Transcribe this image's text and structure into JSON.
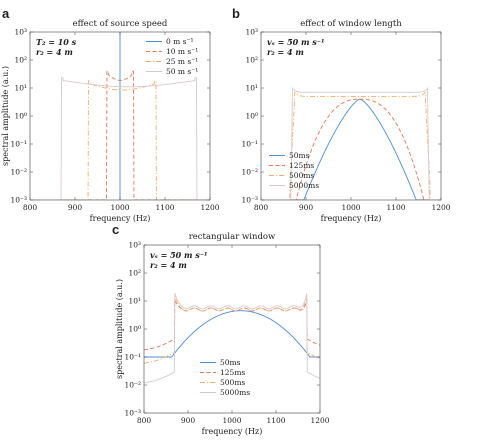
{
  "chart_data": [
    {
      "panel_label": "a",
      "type": "line",
      "title": "effect of source speed",
      "xlabel": "frequency (Hz)",
      "ylabel": "spectral amplitude (a.u.)",
      "xlim": [
        800,
        1200
      ],
      "ylim_log10": [
        -3,
        3
      ],
      "y_scale": "log",
      "x_ticks": [
        "800",
        "900",
        "1000",
        "1100",
        "1200"
      ],
      "y_ticks": [
        "10⁻³",
        "10⁻²",
        "10⁻¹",
        "10⁰",
        "10¹",
        "10²",
        "10³"
      ],
      "annotation": [
        "T₂ = 10 s",
        "r₂ = 4 m"
      ],
      "legend_position": "top-right",
      "series": [
        {
          "name": "0 m s⁻¹",
          "color": "#4d8fd6",
          "dash": "solid",
          "kind": "spike",
          "center": 1000,
          "peak": 1000
        },
        {
          "name": "10 m s⁻¹",
          "color": "#e8735a",
          "dash": "dash",
          "kind": "box",
          "fmin": 971,
          "fmax": 1030,
          "level": 22
        },
        {
          "name": "25 m s⁻¹",
          "color": "#f2b067",
          "dash": "dashdot",
          "kind": "box",
          "fmin": 930,
          "fmax": 1080,
          "level": 10
        },
        {
          "name": "50 m s⁻¹",
          "color": "#d9c8d2",
          "dash": "solid",
          "kind": "box",
          "fmin": 870,
          "fmax": 1170,
          "level": 13
        }
      ]
    },
    {
      "panel_label": "b",
      "type": "line",
      "title": "effect of window length",
      "xlabel": "frequency (Hz)",
      "ylabel": "",
      "xlim": [
        800,
        1200
      ],
      "ylim_log10": [
        -3,
        3
      ],
      "y_scale": "log",
      "x_ticks": [
        "800",
        "900",
        "1000",
        "1100",
        "1200"
      ],
      "y_ticks": [
        "10⁻³",
        "10⁻²",
        "10⁻¹",
        "10⁰",
        "10¹",
        "10²",
        "10³"
      ],
      "annotation": [
        "vₛ = 50 m s⁻¹",
        "r₂ = 4 m"
      ],
      "legend_position": "bottom-left",
      "series": [
        {
          "name": "50ms",
          "color": "#4d8fd6",
          "dash": "solid",
          "kind": "peak",
          "center": 1020,
          "peak": 4,
          "sigma": 50,
          "power": 1.4
        },
        {
          "name": "125ms",
          "color": "#e8735a",
          "dash": "dash",
          "kind": "peak",
          "center": 1020,
          "peak": 4,
          "sigma": 85,
          "power": 2.5
        },
        {
          "name": "500ms",
          "color": "#f2b067",
          "dash": "dashdot",
          "kind": "plateau",
          "fmin": 875,
          "fmax": 1165,
          "level": 5,
          "edge": 10
        },
        {
          "name": "5000ms",
          "color": "#d9c8d2",
          "dash": "solid",
          "kind": "plateau",
          "fmin": 870,
          "fmax": 1170,
          "level": 7,
          "edge": 3
        }
      ]
    },
    {
      "panel_label": "c",
      "type": "line",
      "title": "rectangular window",
      "xlabel": "frequency (Hz)",
      "ylabel": "spectral amplitude (a.u.)",
      "xlim": [
        800,
        1200
      ],
      "ylim_log10": [
        -3,
        3
      ],
      "y_scale": "log",
      "x_ticks": [
        "800",
        "900",
        "1000",
        "1100",
        "1200"
      ],
      "y_ticks": [
        "10⁻³",
        "10⁻²",
        "10⁻¹",
        "10⁰",
        "10¹",
        "10²",
        "10³"
      ],
      "annotation": [
        "vₛ = 50 m s⁻¹",
        "r₂ = 4 m"
      ],
      "legend_position": "bottom-center",
      "series": [
        {
          "name": "50ms",
          "color": "#4d8fd6",
          "dash": "solid",
          "kind": "rectwide",
          "center": 1020,
          "peak": 4.5,
          "tail": 0.1
        },
        {
          "name": "125ms",
          "color": "#e8735a",
          "dash": "dash",
          "kind": "rectplat",
          "fmin": 870,
          "fmax": 1170,
          "level": 5,
          "tail": 0.3,
          "peakEdge": 10
        },
        {
          "name": "500ms",
          "color": "#f2b067",
          "dash": "dashdot",
          "kind": "rectplat",
          "fmin": 870,
          "fmax": 1170,
          "level": 5,
          "tail": 0.1,
          "peakEdge": 14
        },
        {
          "name": "5000ms",
          "color": "#d9c8d2",
          "dash": "solid",
          "kind": "rectplat",
          "fmin": 870,
          "fmax": 1170,
          "level": 6,
          "tail": 0.02,
          "peakEdge": 18
        }
      ]
    }
  ]
}
